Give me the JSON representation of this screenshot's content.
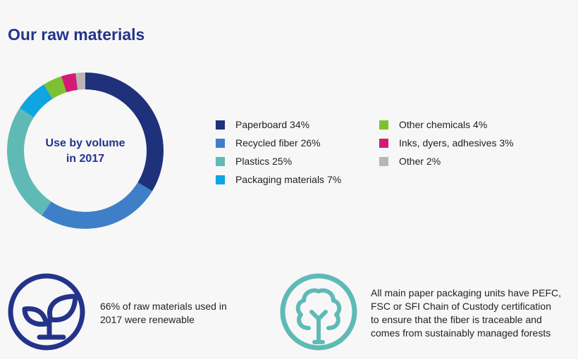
{
  "title": "Our raw materials",
  "chart_data": {
    "type": "pie",
    "donut": true,
    "center_label": [
      "Use by volume",
      "in 2017"
    ],
    "slices": [
      {
        "label": "Paperboard 34%",
        "value": 34,
        "color": "#1f317a"
      },
      {
        "label": "Recycled fiber 26%",
        "value": 26,
        "color": "#3f7fc8"
      },
      {
        "label": "Plastics 25%",
        "value": 25,
        "color": "#5fbab5"
      },
      {
        "label": "Packaging materials 7%",
        "value": 7,
        "color": "#0ea5e0"
      },
      {
        "label": "Other chemicals 4%",
        "value": 4,
        "color": "#7ec130"
      },
      {
        "label": "Inks, dyers, adhesives 3%",
        "value": 3,
        "color": "#d41a74"
      },
      {
        "label": "Other 2%",
        "value": 2,
        "color": "#b9b5b6"
      }
    ],
    "legend_placement": "right"
  },
  "facts": [
    {
      "icon": "plant-sprout-icon",
      "color": "#24338a",
      "text": [
        "66% of raw materials used in",
        "2017 were renewable"
      ]
    },
    {
      "icon": "tree-icon",
      "color": "#5fbab5",
      "text": [
        "All main paper packaging units have PEFC,",
        "FSC or SFI Chain of Custody certification",
        "to ensure that the fiber is traceable and",
        "comes from sustainably managed forests"
      ]
    }
  ]
}
